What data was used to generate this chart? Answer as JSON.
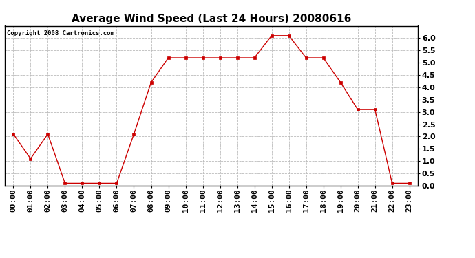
{
  "title": "Average Wind Speed (Last 24 Hours) 20080616",
  "copyright": "Copyright 2008 Cartronics.com",
  "x_labels": [
    "00:00",
    "01:00",
    "02:00",
    "03:00",
    "04:00",
    "05:00",
    "06:00",
    "07:00",
    "08:00",
    "09:00",
    "10:00",
    "11:00",
    "12:00",
    "13:00",
    "14:00",
    "15:00",
    "16:00",
    "17:00",
    "18:00",
    "19:00",
    "20:00",
    "21:00",
    "22:00",
    "23:00"
  ],
  "y_values": [
    2.1,
    1.1,
    2.1,
    0.1,
    0.1,
    0.1,
    0.1,
    2.1,
    4.2,
    5.2,
    5.2,
    5.2,
    5.2,
    5.2,
    5.2,
    6.1,
    6.1,
    5.2,
    5.2,
    4.2,
    3.1,
    3.1,
    0.1,
    0.1
  ],
  "line_color": "#cc0000",
  "marker": "s",
  "marker_size": 3,
  "ylim": [
    0.0,
    6.5
  ],
  "yticks": [
    0.0,
    0.5,
    1.0,
    1.5,
    2.0,
    2.5,
    3.0,
    3.5,
    4.0,
    4.5,
    5.0,
    5.5,
    6.0
  ],
  "ytick_labels": [
    "0.0",
    "0.5",
    "1.0",
    "1.5",
    "2.0",
    "2.5",
    "3.0",
    "3.5",
    "4.0",
    "4.5",
    "5.0",
    "5.5",
    "6.0"
  ],
  "bg_color": "#ffffff",
  "grid_color": "#bbbbbb",
  "title_fontsize": 11,
  "copyright_fontsize": 6.5,
  "tick_fontsize": 8,
  "border_color": "#000000",
  "fig_width": 6.9,
  "fig_height": 3.75,
  "dpi": 100
}
